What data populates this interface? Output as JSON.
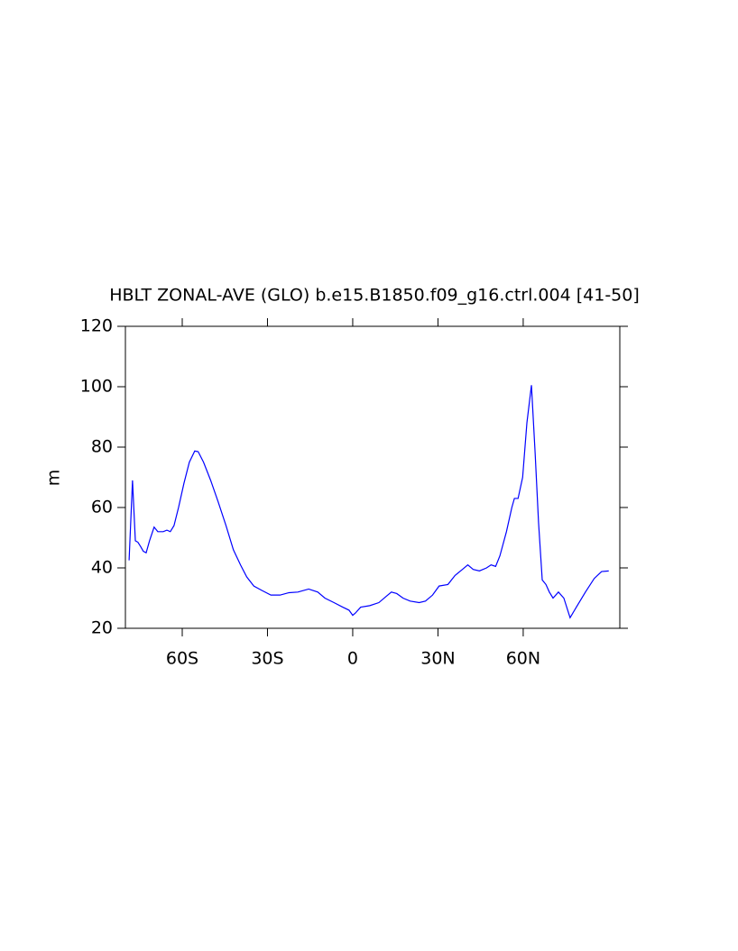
{
  "chart_data": {
    "type": "line",
    "title": "HBLT ZONAL-AVE (GLO) b.e15.B1850.f09_g16.ctrl.004 [41-50]",
    "y_label": "m",
    "x": [
      -78.7,
      -77.5,
      -76.5,
      -75.6,
      -74.6,
      -73.7,
      -72.7,
      -71.5,
      -69.9,
      -68.6,
      -66.7,
      -65.4,
      -64.2,
      -62.9,
      -61.3,
      -59.4,
      -57.5,
      -55.6,
      -54.4,
      -52.5,
      -50,
      -47.4,
      -44.6,
      -42,
      -39.5,
      -37.3,
      -34.8,
      -31.9,
      -28.8,
      -25.6,
      -22.4,
      -19.3,
      -15.5,
      -12.3,
      -9.8,
      -6.6,
      -3.5,
      -1.3,
      0,
      0.9,
      2.8,
      6,
      9.2,
      11.7,
      13.6,
      15.5,
      17.7,
      20.2,
      23.4,
      25.6,
      28.1,
      30.4,
      33.5,
      36,
      38.6,
      40.5,
      42.4,
      44.6,
      47.1,
      48.7,
      50.3,
      51.8,
      54.1,
      56,
      56.9,
      58.2,
      59.8,
      61.3,
      62.9,
      64.2,
      65.4,
      66.7,
      68,
      69.2,
      70.5,
      72.4,
      74.3,
      76.5,
      78.7,
      81.9,
      85,
      87.6,
      90.1
    ],
    "series": [
      {
        "name": "HBLT",
        "color": "#0000ff",
        "values": [
          42.5,
          69,
          49,
          48.5,
          47,
          45.5,
          45,
          49,
          53.5,
          52,
          52,
          52.5,
          52,
          54,
          60,
          68,
          75,
          78.7,
          78.5,
          75,
          69,
          62,
          54,
          46,
          41,
          37,
          34,
          32.5,
          31,
          31,
          31.8,
          32,
          33,
          32,
          30,
          28.5,
          27,
          26,
          24.3,
          25,
          27,
          27.5,
          28.5,
          30.5,
          32,
          31.5,
          30,
          29,
          28.5,
          29,
          31,
          34,
          34.5,
          37.5,
          39.5,
          41,
          39.5,
          39,
          40,
          41,
          40.5,
          44,
          52,
          60,
          63,
          63,
          70,
          88,
          100.5,
          78,
          55,
          36,
          34.5,
          32,
          30,
          32,
          30,
          23.5,
          27,
          32,
          36.5,
          38.8,
          39
        ]
      }
    ],
    "xlim": [
      -80,
      94
    ],
    "ylim": [
      20,
      120
    ],
    "xticks": [
      {
        "value": -60,
        "label": "60S"
      },
      {
        "value": -30,
        "label": "30S"
      },
      0,
      {
        "value": 30,
        "label": "30N"
      },
      {
        "value": 60,
        "label": "60N"
      }
    ],
    "yticks": [
      20,
      40,
      60,
      80,
      100,
      120
    ]
  }
}
